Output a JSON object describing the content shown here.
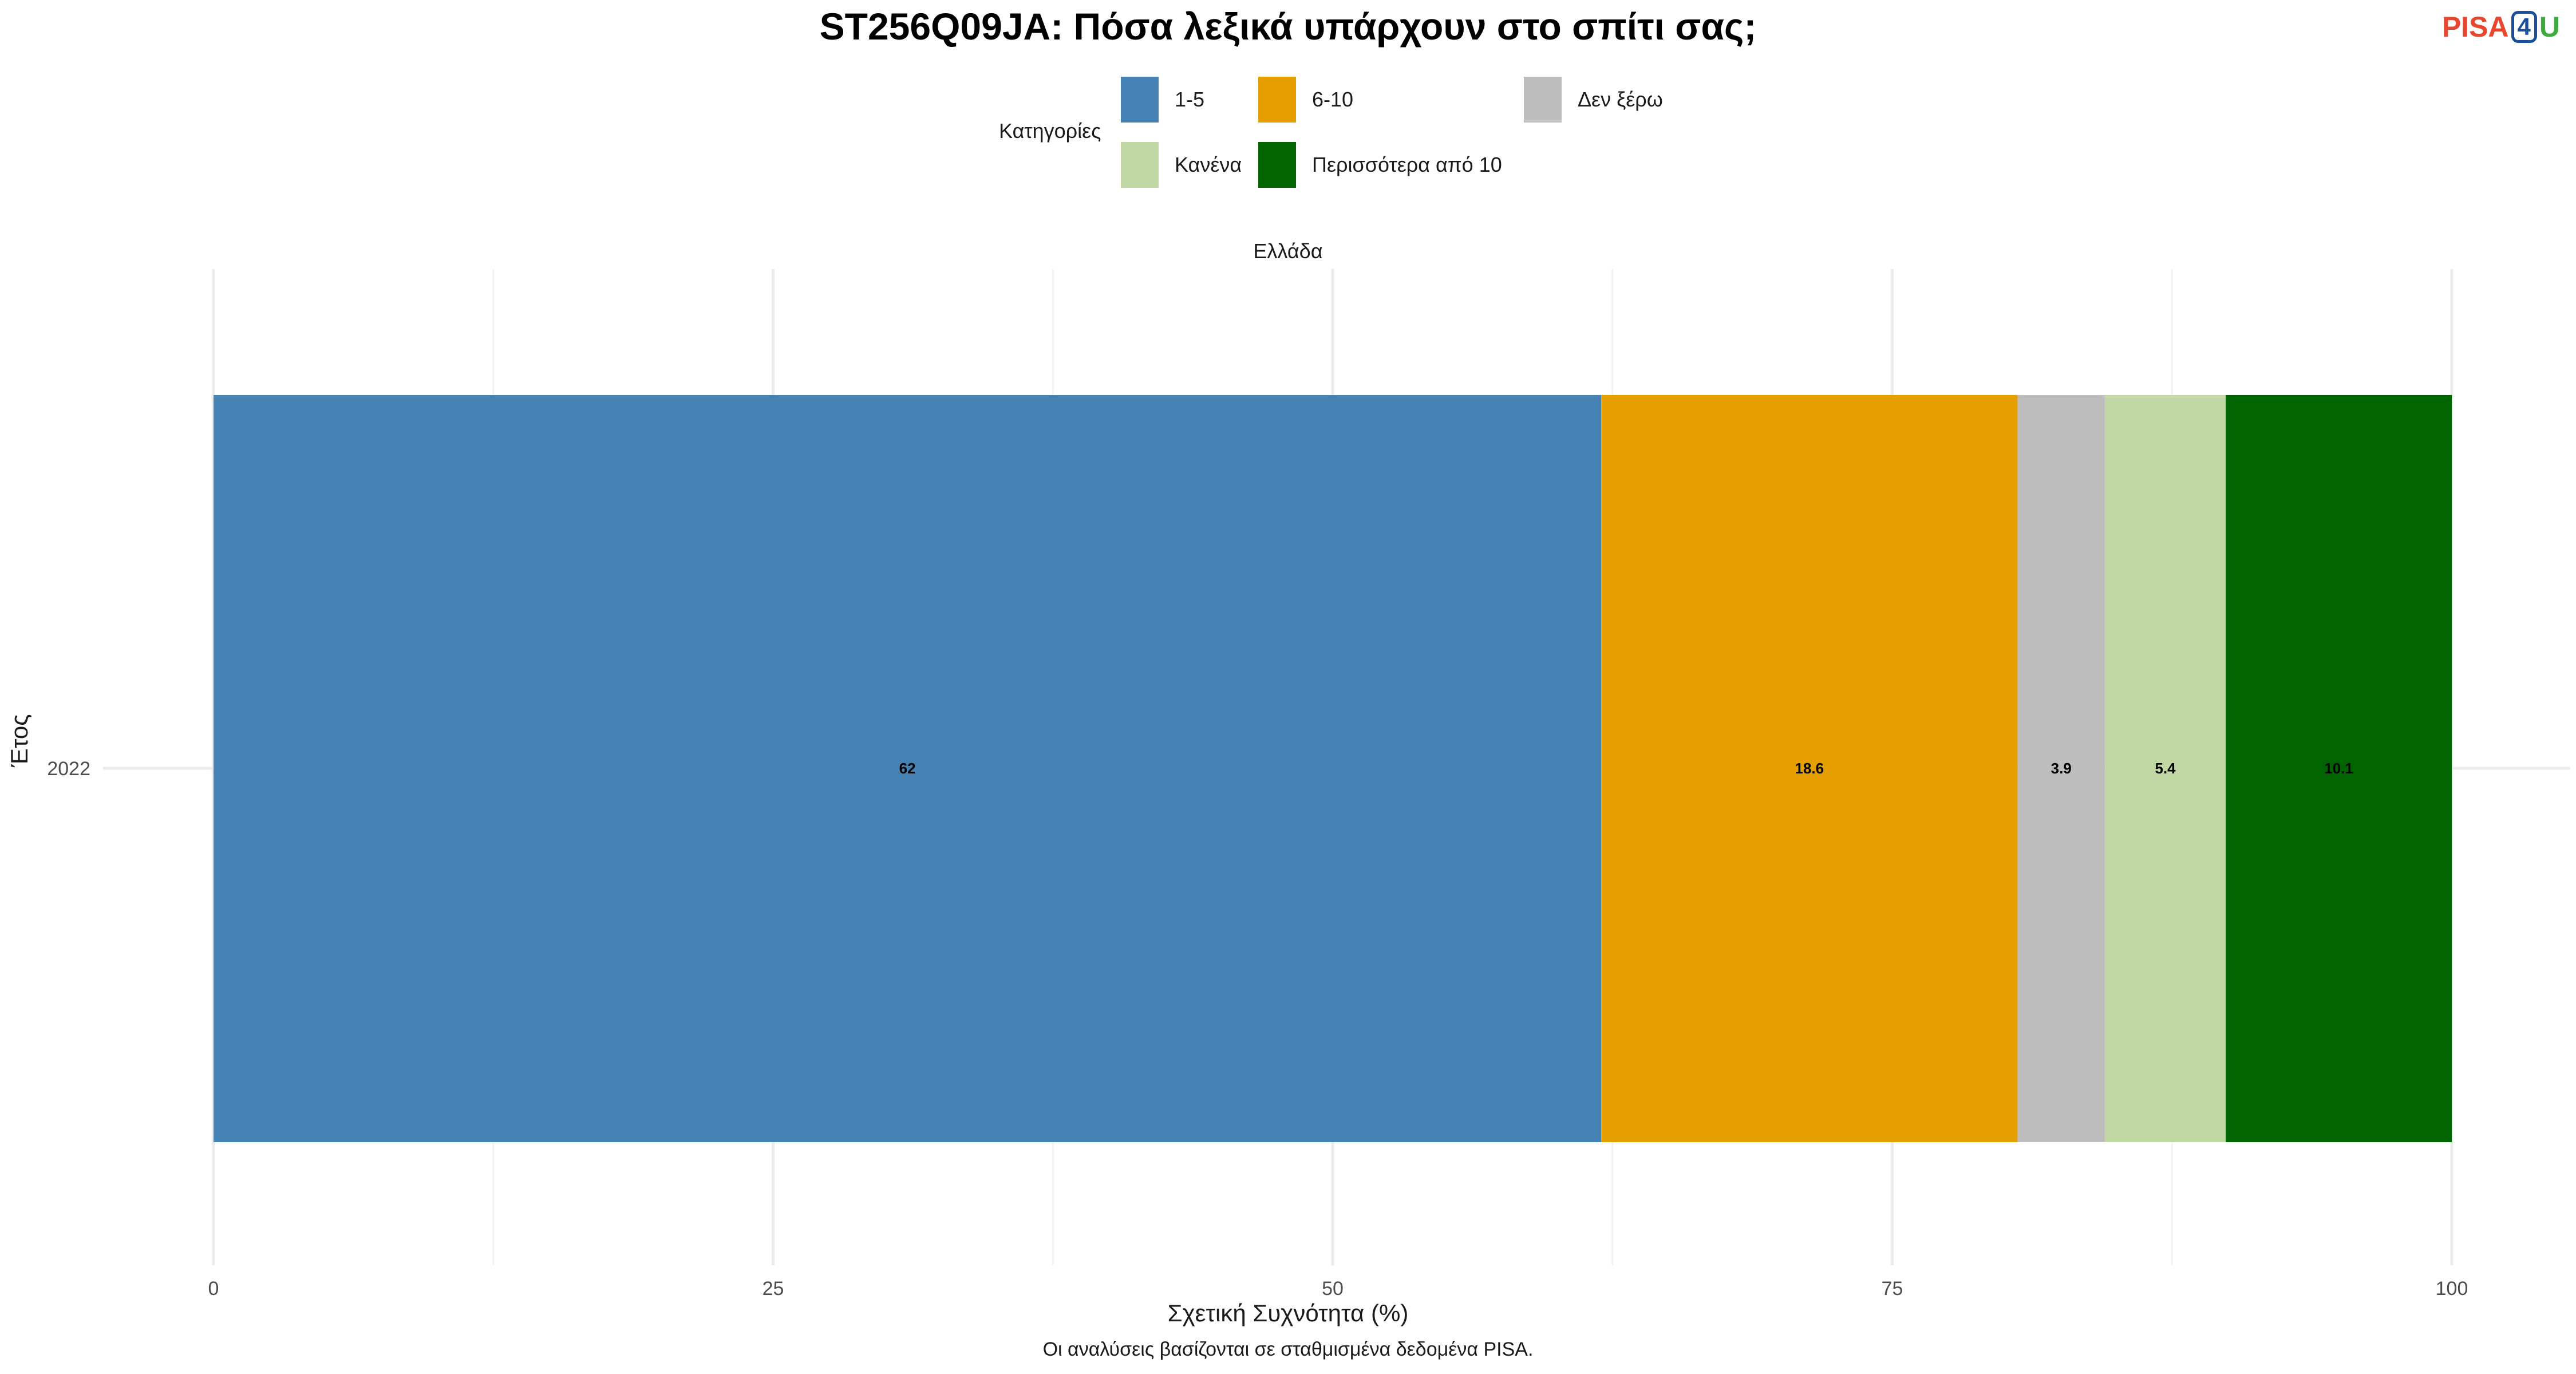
{
  "logo": {
    "pisa": "PISA",
    "four": "4",
    "u": "U"
  },
  "chart_data": {
    "type": "bar",
    "orientation": "horizontal",
    "stacked": true,
    "title": "ST256Q09JA: Πόσα λεξικά υπάρχουν στο σπίτι σας;",
    "facet": "Ελλάδα",
    "xlabel": "Σχετική Συχνότητα (%)",
    "ylabel": "Έτος",
    "caption": "Οι αναλύσεις βασίζονται σε σταθμισμένα δεδομένα PISA.",
    "categories": [
      "2022"
    ],
    "xlim": [
      0,
      100
    ],
    "xticks": [
      0,
      25,
      50,
      75,
      100
    ],
    "grid": true,
    "legend": {
      "title": "Κατηγορίες",
      "position": "top"
    },
    "series": [
      {
        "name": "1-5",
        "color": "#4682B4",
        "values": [
          62
        ],
        "label": "62"
      },
      {
        "name": "6-10",
        "color": "#E69F00",
        "values": [
          18.6
        ],
        "label": "18.6"
      },
      {
        "name": "Δεν ξέρω",
        "color": "#BEBEBE",
        "values": [
          3.9
        ],
        "label": "3.9"
      },
      {
        "name": "Κανένα",
        "color": "#C1D7A4",
        "values": [
          5.4
        ],
        "label": "5.4"
      },
      {
        "name": "Περισσότερα από 10",
        "color": "#006400",
        "values": [
          10.1
        ],
        "label": "10.1"
      }
    ]
  }
}
